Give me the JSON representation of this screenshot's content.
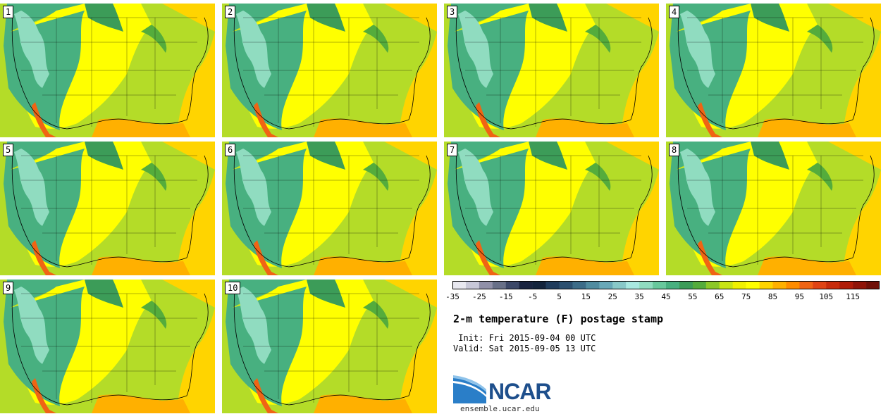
{
  "panels": [
    {
      "label": "1"
    },
    {
      "label": "2"
    },
    {
      "label": "3"
    },
    {
      "label": "4"
    },
    {
      "label": "5"
    },
    {
      "label": "6"
    },
    {
      "label": "7"
    },
    {
      "label": "8"
    },
    {
      "label": "9"
    },
    {
      "label": "10"
    }
  ],
  "colorbar": {
    "ticks": [
      "-35",
      "-25",
      "-15",
      "-5",
      "5",
      "15",
      "25",
      "35",
      "45",
      "55",
      "65",
      "75",
      "85",
      "95",
      "105",
      "115"
    ],
    "colors": [
      "#e8e8f0",
      "#c8c8d8",
      "#9090a8",
      "#687088",
      "#3c4868",
      "#1a2440",
      "#14243c",
      "#203c5c",
      "#2c5070",
      "#3c6c88",
      "#508ca0",
      "#68a8b8",
      "#88c8c8",
      "#a8e8e0",
      "#90dcc0",
      "#68c89c",
      "#48b080",
      "#3c9c58",
      "#54ac3c",
      "#8cc828",
      "#c8e414",
      "#f0f000",
      "#ffff00",
      "#ffd400",
      "#ffb000",
      "#ff8c00",
      "#f06414",
      "#e04414",
      "#c82c0c",
      "#b01c08",
      "#901408",
      "#701008"
    ]
  },
  "title": "2-m temperature (F) postage stamp",
  "init_line": " Init: Fri 2015-09-04 00 UTC",
  "valid_line": "Valid: Sat 2015-09-05 13 UTC",
  "logo_text": "NCAR",
  "site": "ensemble.ucar.edu"
}
